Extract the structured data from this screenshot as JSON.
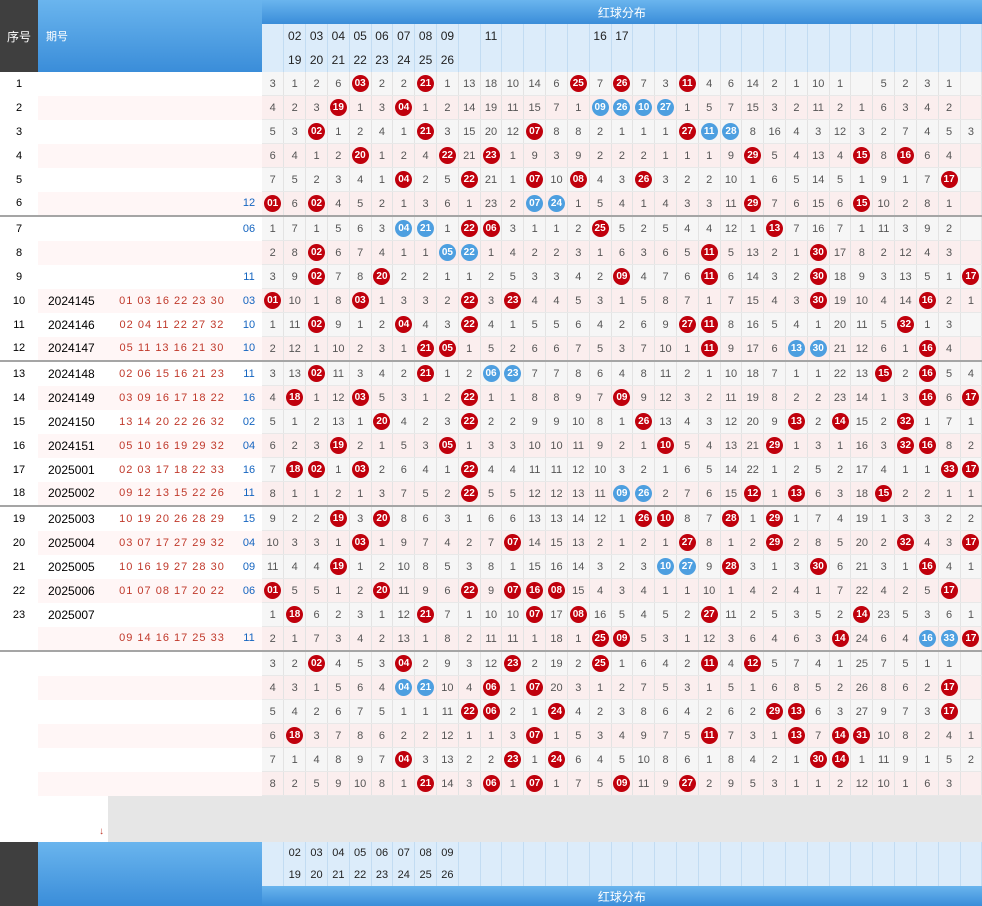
{
  "header": {
    "seq_label": "序号",
    "period_label": "期号",
    "title": "红球分布",
    "cols_top": [
      "",
      "02",
      "03",
      "04",
      "05",
      "06",
      "07",
      "08",
      "09",
      "",
      "11",
      "",
      "",
      "",
      "",
      "16",
      "17"
    ],
    "cols_bottom": [
      "",
      "19",
      "20",
      "21",
      "22",
      "23",
      "24",
      "25",
      "26",
      "",
      "",
      "",
      "",
      "",
      "",
      "",
      ""
    ]
  },
  "footer": {
    "title": "红球分布",
    "cols_top": [
      "",
      "02",
      "03",
      "04",
      "05",
      "06",
      "07",
      "08",
      "09",
      "",
      "",
      "",
      "",
      "",
      "",
      ""
    ],
    "cols_bottom": [
      "",
      "19",
      "20",
      "21",
      "22",
      "23",
      "24",
      "25",
      "26",
      "",
      "",
      "",
      "",
      "",
      "",
      ""
    ]
  },
  "rows": [
    {
      "seq": "1",
      "period": "",
      "reds": "",
      "blue": "",
      "cells": [
        "3",
        "1",
        "2",
        "6",
        "r03",
        "2",
        "2",
        "r21",
        "1",
        "13",
        "18",
        "10",
        "14",
        "6",
        "r25",
        "7",
        "r26",
        "7",
        "3",
        "r11",
        "4",
        "6",
        "14",
        "2",
        "1",
        "10",
        "1",
        "",
        "5",
        "2",
        "3",
        "1"
      ]
    },
    {
      "seq": "2",
      "period": "",
      "reds": "",
      "blue": "",
      "cells": [
        "4",
        "2",
        "3",
        "r19",
        "1",
        "3",
        "r04",
        "1",
        "2",
        "14",
        "19",
        "11",
        "15",
        "7",
        "1",
        "b09",
        "b26",
        "b10",
        "b27",
        "1",
        "5",
        "7",
        "15",
        "3",
        "2",
        "11",
        "2",
        "1",
        "6",
        "3",
        "4",
        "2"
      ]
    },
    {
      "seq": "3",
      "period": "",
      "reds": "",
      "blue": "",
      "cells": [
        "5",
        "3",
        "r02",
        "1",
        "2",
        "4",
        "1",
        "r21",
        "3",
        "15",
        "20",
        "12",
        "r07",
        "8",
        "8",
        "2",
        "1",
        "1",
        "1",
        "r27",
        "b11",
        "b28",
        "8",
        "16",
        "4",
        "3",
        "12",
        "3",
        "2",
        "7",
        "4",
        "5",
        "3"
      ]
    },
    {
      "seq": "4",
      "period": "",
      "reds": "",
      "blue": "",
      "cells": [
        "6",
        "4",
        "1",
        "2",
        "r20",
        "1",
        "2",
        "4",
        "r22",
        "21",
        "r23",
        "1",
        "9",
        "3",
        "9",
        "2",
        "2",
        "2",
        "1",
        "1",
        "1",
        "9",
        "r29",
        "5",
        "4",
        "13",
        "4",
        "r15",
        "8",
        "r16",
        "6",
        "4"
      ]
    },
    {
      "seq": "5",
      "period": "",
      "reds": "",
      "blue": "",
      "cells": [
        "7",
        "5",
        "2",
        "3",
        "4",
        "1",
        "r04",
        "2",
        "5",
        "r22",
        "21",
        "1",
        "r07",
        "10",
        "r08",
        "4",
        "3",
        "r26",
        "3",
        "2",
        "2",
        "10",
        "1",
        "6",
        "5",
        "14",
        "5",
        "1",
        "9",
        "1",
        "7",
        "r17"
      ]
    },
    {
      "seq": "6",
      "period": "",
      "reds": "",
      "blue": "12",
      "cells": [
        "r01",
        "6",
        "r02",
        "4",
        "5",
        "2",
        "1",
        "3",
        "6",
        "1",
        "23",
        "2",
        "b07",
        "b24",
        "1",
        "5",
        "4",
        "1",
        "4",
        "3",
        "3",
        "11",
        "r29",
        "7",
        "6",
        "15",
        "6",
        "r15",
        "10",
        "2",
        "8",
        "1"
      ]
    },
    {
      "seq": "7",
      "period": "",
      "reds": "",
      "blue": "06",
      "cells": [
        "1",
        "7",
        "1",
        "5",
        "6",
        "3",
        "b04",
        "b21",
        "1",
        "r22",
        "r06",
        "3",
        "1",
        "1",
        "2",
        "r25",
        "5",
        "2",
        "5",
        "4",
        "4",
        "12",
        "1",
        "r13",
        "7",
        "16",
        "7",
        "1",
        "11",
        "3",
        "9",
        "2"
      ]
    },
    {
      "seq": "8",
      "period": "",
      "reds": "",
      "blue": "",
      "cells": [
        "2",
        "8",
        "r02",
        "6",
        "7",
        "4",
        "1",
        "1",
        "b05",
        "b22",
        "1",
        "4",
        "2",
        "2",
        "3",
        "1",
        "6",
        "3",
        "6",
        "5",
        "r11",
        "5",
        "13",
        "2",
        "1",
        "r30",
        "17",
        "8",
        "2",
        "12",
        "4",
        "3"
      ]
    },
    {
      "seq": "9",
      "period": "",
      "reds": "",
      "blue": "11",
      "cells": [
        "3",
        "9",
        "r02",
        "7",
        "8",
        "r20",
        "2",
        "2",
        "1",
        "1",
        "2",
        "5",
        "3",
        "3",
        "4",
        "2",
        "r09",
        "4",
        "7",
        "6",
        "r11",
        "6",
        "14",
        "3",
        "2",
        "r30",
        "18",
        "9",
        "3",
        "13",
        "5",
        "1",
        "r17"
      ]
    },
    {
      "seq": "10",
      "period": "2024145",
      "reds": "01 03 16 22 23 30",
      "blue": "03",
      "cells": [
        "r01",
        "10",
        "1",
        "8",
        "r03",
        "1",
        "3",
        "3",
        "2",
        "r22",
        "3",
        "r23",
        "4",
        "4",
        "5",
        "3",
        "1",
        "5",
        "8",
        "7",
        "1",
        "7",
        "15",
        "4",
        "3",
        "r30",
        "19",
        "10",
        "4",
        "14",
        "r16",
        "2",
        "1"
      ]
    },
    {
      "seq": "11",
      "period": "2024146",
      "reds": "02 04 11 22 27 32",
      "blue": "10",
      "cells": [
        "1",
        "11",
        "r02",
        "9",
        "1",
        "2",
        "r04",
        "4",
        "3",
        "r22",
        "4",
        "1",
        "5",
        "5",
        "6",
        "4",
        "2",
        "6",
        "9",
        "r27",
        "r11",
        "8",
        "16",
        "5",
        "4",
        "1",
        "20",
        "11",
        "5",
        "r32",
        "1",
        "3"
      ]
    },
    {
      "seq": "12",
      "period": "2024147",
      "reds": "05 11 13 16 21 30",
      "blue": "10",
      "cells": [
        "2",
        "12",
        "1",
        "10",
        "2",
        "3",
        "1",
        "r21",
        "r05",
        "1",
        "5",
        "2",
        "6",
        "6",
        "7",
        "5",
        "3",
        "7",
        "10",
        "1",
        "r11",
        "9",
        "17",
        "6",
        "b13",
        "b30",
        "21",
        "12",
        "6",
        "1",
        "r16",
        "4"
      ]
    },
    {
      "seq": "13",
      "period": "2024148",
      "reds": "02 06 15 16 21 23",
      "blue": "11",
      "cells": [
        "3",
        "13",
        "r02",
        "11",
        "3",
        "4",
        "2",
        "r21",
        "1",
        "2",
        "b06",
        "b23",
        "7",
        "7",
        "8",
        "6",
        "4",
        "8",
        "11",
        "2",
        "1",
        "10",
        "18",
        "7",
        "1",
        "1",
        "22",
        "13",
        "r15",
        "2",
        "r16",
        "5",
        "4"
      ]
    },
    {
      "seq": "14",
      "period": "2024149",
      "reds": "03 09 16 17 18 22",
      "blue": "16",
      "cells": [
        "4",
        "r18",
        "1",
        "12",
        "r03",
        "5",
        "3",
        "1",
        "2",
        "r22",
        "1",
        "1",
        "8",
        "8",
        "9",
        "7",
        "r09",
        "9",
        "12",
        "3",
        "2",
        "11",
        "19",
        "8",
        "2",
        "2",
        "23",
        "14",
        "1",
        "3",
        "r16",
        "6",
        "r17"
      ]
    },
    {
      "seq": "15",
      "period": "2024150",
      "reds": "13 14 20 22 26 32",
      "blue": "02",
      "cells": [
        "5",
        "1",
        "2",
        "13",
        "1",
        "r20",
        "4",
        "2",
        "3",
        "r22",
        "2",
        "2",
        "9",
        "9",
        "10",
        "8",
        "1",
        "r26",
        "13",
        "4",
        "3",
        "12",
        "20",
        "9",
        "r13",
        "2",
        "r14",
        "15",
        "2",
        "r32",
        "1",
        "7",
        "1"
      ]
    },
    {
      "seq": "16",
      "period": "2024151",
      "reds": "05 10 16 19 29 32",
      "blue": "04",
      "cells": [
        "6",
        "2",
        "3",
        "r19",
        "2",
        "1",
        "5",
        "3",
        "r05",
        "1",
        "3",
        "3",
        "10",
        "10",
        "11",
        "9",
        "2",
        "1",
        "r10",
        "5",
        "4",
        "13",
        "21",
        "r29",
        "1",
        "3",
        "1",
        "16",
        "3",
        "r32",
        "r16",
        "8",
        "2"
      ]
    },
    {
      "seq": "17",
      "period": "2025001",
      "reds": "02 03 17 18 22 33",
      "blue": "16",
      "cells": [
        "7",
        "r18",
        "r02",
        "1",
        "r03",
        "2",
        "6",
        "4",
        "1",
        "r22",
        "4",
        "4",
        "11",
        "11",
        "12",
        "10",
        "3",
        "2",
        "1",
        "6",
        "5",
        "14",
        "22",
        "1",
        "2",
        "5",
        "2",
        "17",
        "4",
        "1",
        "1",
        "r33",
        "r17"
      ]
    },
    {
      "seq": "18",
      "period": "2025002",
      "reds": "09 12 13 15 22 26",
      "blue": "11",
      "cells": [
        "8",
        "1",
        "1",
        "2",
        "1",
        "3",
        "7",
        "5",
        "2",
        "r22",
        "5",
        "5",
        "12",
        "12",
        "13",
        "11",
        "b09",
        "b26",
        "2",
        "7",
        "6",
        "15",
        "r12",
        "1",
        "r13",
        "6",
        "3",
        "18",
        "r15",
        "2",
        "2",
        "1",
        "1"
      ]
    },
    {
      "seq": "19",
      "period": "2025003",
      "reds": "10 19 20 26 28 29",
      "blue": "15",
      "cells": [
        "9",
        "2",
        "2",
        "r19",
        "3",
        "r20",
        "8",
        "6",
        "3",
        "1",
        "6",
        "6",
        "13",
        "13",
        "14",
        "12",
        "1",
        "r26",
        "r10",
        "8",
        "7",
        "r28",
        "1",
        "r29",
        "1",
        "7",
        "4",
        "19",
        "1",
        "3",
        "3",
        "2",
        "2"
      ]
    },
    {
      "seq": "20",
      "period": "2025004",
      "reds": "03 07 17 27 29 32",
      "blue": "04",
      "cells": [
        "10",
        "3",
        "3",
        "1",
        "r03",
        "1",
        "9",
        "7",
        "4",
        "2",
        "7",
        "r07",
        "14",
        "15",
        "13",
        "2",
        "1",
        "2",
        "1",
        "r27",
        "8",
        "1",
        "2",
        "r29",
        "2",
        "8",
        "5",
        "20",
        "2",
        "r32",
        "4",
        "3",
        "r17"
      ]
    },
    {
      "seq": "21",
      "period": "2025005",
      "reds": "10 16 19 27 28 30",
      "blue": "09",
      "cells": [
        "11",
        "4",
        "4",
        "r19",
        "1",
        "2",
        "10",
        "8",
        "5",
        "3",
        "8",
        "1",
        "15",
        "16",
        "14",
        "3",
        "2",
        "3",
        "b10",
        "b27",
        "9",
        "r28",
        "3",
        "1",
        "3",
        "r30",
        "6",
        "21",
        "3",
        "1",
        "r16",
        "4",
        "1"
      ]
    },
    {
      "seq": "22",
      "period": "2025006",
      "reds": "01 07 08 17 20 22",
      "blue": "06",
      "cells": [
        "r01",
        "5",
        "5",
        "1",
        "2",
        "r20",
        "11",
        "9",
        "6",
        "r22",
        "9",
        "r07",
        "r16",
        "r08",
        "15",
        "4",
        "3",
        "4",
        "1",
        "1",
        "10",
        "1",
        "4",
        "2",
        "4",
        "1",
        "7",
        "22",
        "4",
        "2",
        "5",
        "r17"
      ]
    },
    {
      "seq": "23",
      "period": "2025007",
      "reds": "",
      "blue": "",
      "cells": [
        "1",
        "r18",
        "6",
        "2",
        "3",
        "1",
        "12",
        "r21",
        "7",
        "1",
        "10",
        "10",
        "r07",
        "17",
        "r08",
        "16",
        "5",
        "4",
        "5",
        "2",
        "r27",
        "11",
        "2",
        "5",
        "3",
        "5",
        "2",
        "r14",
        "23",
        "5",
        "3",
        "6",
        "1"
      ]
    },
    {
      "seq": "",
      "period": "",
      "reds": "09 14 16 17 25 33",
      "blue": "11",
      "cells": [
        "2",
        "1",
        "7",
        "3",
        "4",
        "2",
        "13",
        "1",
        "8",
        "2",
        "11",
        "11",
        "1",
        "18",
        "1",
        "r25",
        "r09",
        "5",
        "3",
        "1",
        "12",
        "3",
        "6",
        "4",
        "6",
        "3",
        "r14",
        "24",
        "6",
        "4",
        "b16",
        "b33",
        "r17"
      ]
    },
    {
      "seq": "",
      "period": "",
      "reds": "",
      "blue": "",
      "cells": [
        "3",
        "2",
        "r02",
        "4",
        "5",
        "3",
        "r04",
        "2",
        "9",
        "3",
        "12",
        "r23",
        "2",
        "19",
        "2",
        "r25",
        "1",
        "6",
        "4",
        "2",
        "r11",
        "4",
        "r12",
        "5",
        "7",
        "4",
        "1",
        "25",
        "7",
        "5",
        "1",
        "1"
      ]
    },
    {
      "seq": "",
      "period": "",
      "reds": "",
      "blue": "",
      "cells": [
        "4",
        "3",
        "1",
        "5",
        "6",
        "4",
        "b04",
        "b21",
        "10",
        "4",
        "r06",
        "1",
        "r07",
        "20",
        "3",
        "1",
        "2",
        "7",
        "5",
        "3",
        "1",
        "5",
        "1",
        "6",
        "8",
        "5",
        "2",
        "26",
        "8",
        "6",
        "2",
        "r17"
      ]
    },
    {
      "seq": "",
      "period": "",
      "reds": "",
      "blue": "",
      "cells": [
        "5",
        "4",
        "2",
        "6",
        "7",
        "5",
        "1",
        "1",
        "11",
        "r22",
        "r06",
        "2",
        "1",
        "r24",
        "4",
        "2",
        "3",
        "8",
        "6",
        "4",
        "2",
        "6",
        "2",
        "r29",
        "r13",
        "6",
        "3",
        "27",
        "9",
        "7",
        "3",
        "r17"
      ]
    },
    {
      "seq": "",
      "period": "",
      "reds": "",
      "blue": "",
      "cells": [
        "6",
        "r18",
        "3",
        "7",
        "8",
        "6",
        "2",
        "2",
        "12",
        "1",
        "1",
        "3",
        "r07",
        "1",
        "5",
        "3",
        "4",
        "9",
        "7",
        "5",
        "r11",
        "7",
        "3",
        "1",
        "r13",
        "7",
        "r14",
        "r31",
        "10",
        "8",
        "2",
        "4",
        "1"
      ]
    },
    {
      "seq": "",
      "period": "",
      "reds": "",
      "blue": "",
      "cells": [
        "7",
        "1",
        "4",
        "8",
        "9",
        "7",
        "r04",
        "3",
        "13",
        "2",
        "2",
        "r23",
        "1",
        "r24",
        "6",
        "4",
        "5",
        "10",
        "8",
        "6",
        "1",
        "8",
        "4",
        "2",
        "1",
        "r30",
        "r14",
        "1",
        "11",
        "9",
        "1",
        "5",
        "2"
      ]
    },
    {
      "seq": "",
      "period": "",
      "reds": "",
      "blue": "",
      "cells": [
        "8",
        "2",
        "5",
        "9",
        "10",
        "8",
        "1",
        "r21",
        "14",
        "3",
        "r06",
        "1",
        "r07",
        "1",
        "7",
        "5",
        "r09",
        "11",
        "9",
        "r27",
        "2",
        "9",
        "5",
        "3",
        "1",
        "1",
        "2",
        "12",
        "10",
        "1",
        "6",
        "3"
      ]
    }
  ]
}
